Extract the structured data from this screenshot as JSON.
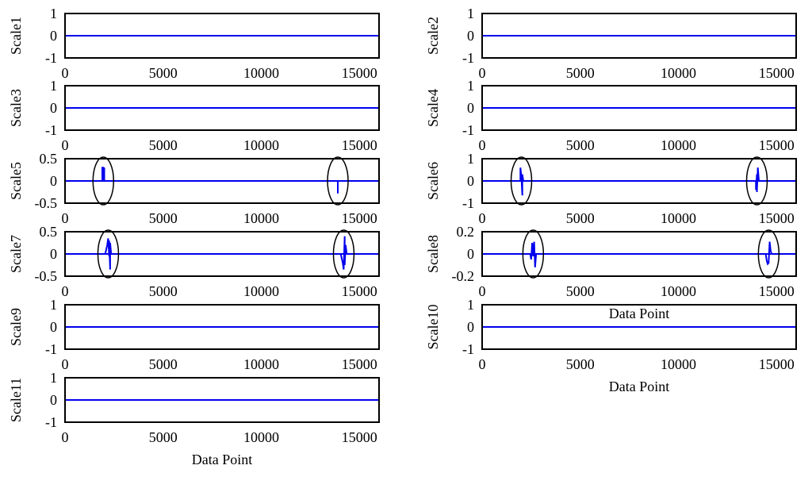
{
  "chart_data": {
    "type": "line",
    "x_range": [
      0,
      16000
    ],
    "x_ticks": [
      "0",
      "5000",
      "10000",
      "15000"
    ],
    "xlabel_text": "Data Point",
    "series_color": "#0000ee",
    "panels": [
      {
        "ylabel": "Scale1",
        "ylim": [
          -1,
          1
        ],
        "y_ticks": [
          "1",
          "0",
          "-1"
        ],
        "baseline": 0,
        "spikes": [],
        "x_axis_title": false
      },
      {
        "ylabel": "Scale2",
        "ylim": [
          -1,
          1
        ],
        "y_ticks": [
          "1",
          "0",
          "-1"
        ],
        "baseline": 0,
        "spikes": [],
        "x_axis_title": false
      },
      {
        "ylabel": "Scale3",
        "ylim": [
          -1,
          1
        ],
        "y_ticks": [
          "1",
          "0",
          "-1"
        ],
        "baseline": 0,
        "spikes": [],
        "x_axis_title": false
      },
      {
        "ylabel": "Scale4",
        "ylim": [
          -1,
          1
        ],
        "y_ticks": [
          "1",
          "0",
          "-1"
        ],
        "baseline": 0,
        "spikes": [],
        "x_axis_title": false
      },
      {
        "ylabel": "Scale5",
        "ylim": [
          -0.5,
          0.5
        ],
        "y_ticks": [
          "0.5",
          "0",
          "-0.5"
        ],
        "baseline": 0,
        "spikes": [
          {
            "x": 1950,
            "points": [
              [
                1900,
                0
              ],
              [
                1900,
                0.3
              ],
              [
                1950,
                0.3
              ],
              [
                1950,
                0
              ],
              [
                2000,
                0
              ],
              [
                2000,
                0.3
              ],
              [
                2000,
                0
              ]
            ],
            "marked": true
          },
          {
            "x": 13900,
            "points": [
              [
                13900,
                0
              ],
              [
                13900,
                -0.28
              ],
              [
                13900,
                0
              ]
            ],
            "marked": true
          }
        ],
        "x_axis_title": false
      },
      {
        "ylabel": "Scale6",
        "ylim": [
          -1,
          1
        ],
        "y_ticks": [
          "1",
          "0",
          "-1"
        ],
        "baseline": 0,
        "spikes": [
          {
            "x": 2000,
            "points": [
              [
                1950,
                0
              ],
              [
                1950,
                0.6
              ],
              [
                2000,
                0.2
              ],
              [
                2050,
                -0.65
              ],
              [
                2050,
                0.3
              ],
              [
                2100,
                0
              ]
            ],
            "marked": true
          },
          {
            "x": 14000,
            "points": [
              [
                13950,
                0
              ],
              [
                13950,
                -0.4
              ],
              [
                14000,
                0.3
              ],
              [
                14000,
                -0.5
              ],
              [
                14050,
                0.6
              ],
              [
                14100,
                0
              ]
            ],
            "marked": true
          }
        ],
        "x_axis_title": false
      },
      {
        "ylabel": "Scale7",
        "ylim": [
          -0.5,
          0.5
        ],
        "y_ticks": [
          "0.5",
          "0",
          "-0.5"
        ],
        "baseline": 0,
        "spikes": [
          {
            "x": 2200,
            "points": [
              [
                2050,
                0
              ],
              [
                2150,
                0.2
              ],
              [
                2200,
                0.35
              ],
              [
                2250,
                -0.05
              ],
              [
                2250,
                0.3
              ],
              [
                2300,
                -0.35
              ],
              [
                2300,
                0.25
              ],
              [
                2350,
                0
              ]
            ],
            "marked": true
          },
          {
            "x": 14200,
            "points": [
              [
                14050,
                0
              ],
              [
                14150,
                -0.2
              ],
              [
                14200,
                -0.35
              ],
              [
                14250,
                0.4
              ],
              [
                14250,
                -0.25
              ],
              [
                14300,
                0.2
              ],
              [
                14350,
                0
              ]
            ],
            "marked": true
          }
        ],
        "x_axis_title": false
      },
      {
        "ylabel": "Scale8",
        "ylim": [
          -0.2,
          0.2
        ],
        "y_ticks": [
          "0.2",
          "0",
          "-0.2"
        ],
        "baseline": 0,
        "spikes": [
          {
            "x": 2600,
            "points": [
              [
                2450,
                0
              ],
              [
                2500,
                -0.05
              ],
              [
                2550,
                0.1
              ],
              [
                2600,
                -0.02
              ],
              [
                2650,
                0.11
              ],
              [
                2700,
                -0.12
              ],
              [
                2750,
                0
              ]
            ],
            "marked": true
          },
          {
            "x": 14600,
            "points": [
              [
                14450,
                0
              ],
              [
                14500,
                -0.06
              ],
              [
                14550,
                -0.09
              ],
              [
                14600,
                -0.08
              ],
              [
                14650,
                0.11
              ],
              [
                14700,
                0.03
              ],
              [
                14750,
                0
              ]
            ],
            "marked": true
          }
        ],
        "x_axis_title": true
      },
      {
        "ylabel": "Scale9",
        "ylim": [
          -1,
          1
        ],
        "y_ticks": [
          "1",
          "0",
          "-1"
        ],
        "baseline": 0,
        "spikes": [],
        "x_axis_title": false
      },
      {
        "ylabel": "Scale10",
        "ylim": [
          -1,
          1
        ],
        "y_ticks": [
          "1",
          "0",
          "-1"
        ],
        "baseline": 0,
        "spikes": [],
        "x_axis_title": true
      },
      {
        "ylabel": "Scale11",
        "ylim": [
          -1,
          1
        ],
        "y_ticks": [
          "1",
          "0",
          "-1"
        ],
        "baseline": 0,
        "spikes": [],
        "x_axis_title": true
      }
    ]
  }
}
